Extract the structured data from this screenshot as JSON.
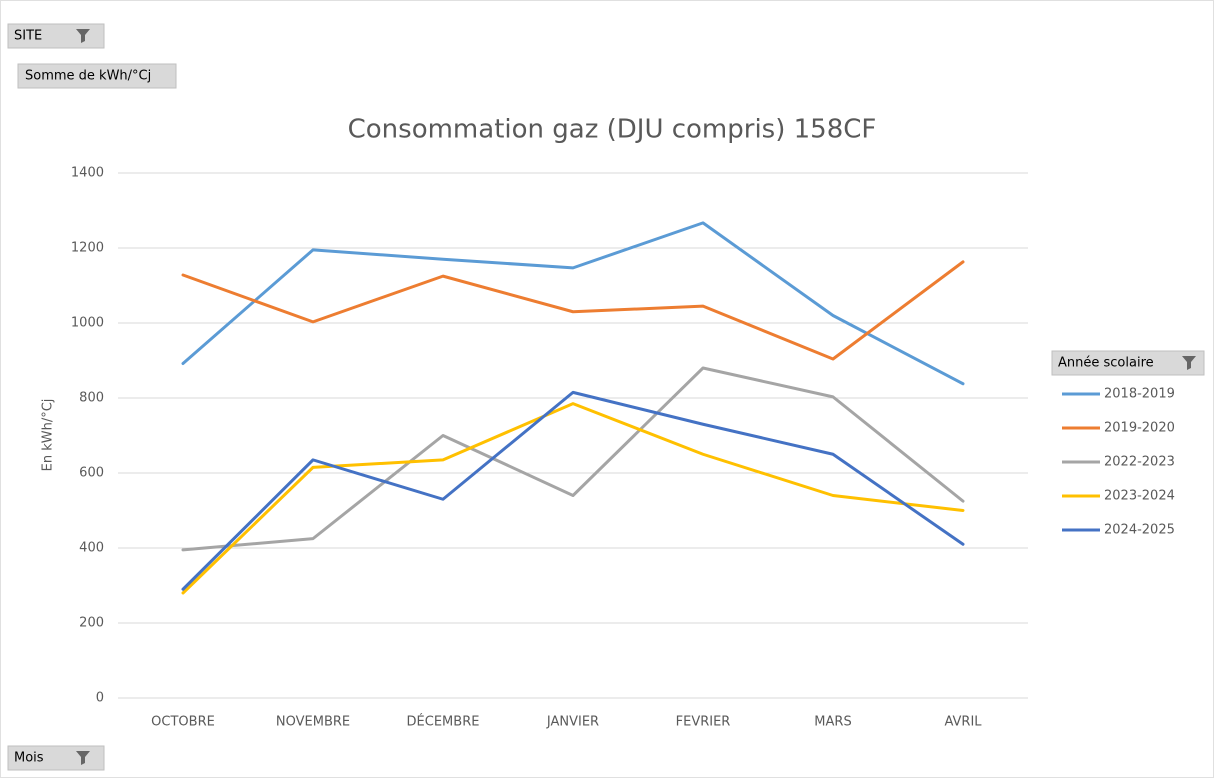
{
  "pivot": {
    "report_filter": "SITE",
    "values_field": "Somme de kWh/°Cj",
    "legend_field": "Année scolaire",
    "axis_field": "Mois"
  },
  "chart_data": {
    "type": "line",
    "title": "Consommation gaz (DJU compris) 158CF",
    "y_label": "En kWh/°Cj",
    "categories": [
      "OCTOBRE",
      "NOVEMBRE",
      "DÉCEMBRE",
      "JANVIER",
      "FEVRIER",
      "MARS",
      "AVRIL"
    ],
    "series": [
      {
        "name": "2018-2019",
        "color": "#5b9bd5",
        "values": [
          892,
          1195,
          1170,
          1147,
          1267,
          1020,
          838
        ]
      },
      {
        "name": "2019-2020",
        "color": "#ed7d31",
        "values": [
          1128,
          1003,
          1125,
          1030,
          1045,
          904,
          1163
        ]
      },
      {
        "name": "2022-2023",
        "color": "#a5a5a5",
        "values": [
          395,
          425,
          700,
          540,
          880,
          803,
          525
        ]
      },
      {
        "name": "2023-2024",
        "color": "#ffc000",
        "values": [
          280,
          615,
          635,
          785,
          650,
          540,
          500
        ]
      },
      {
        "name": "2024-2025",
        "color": "#4472c4",
        "values": [
          290,
          635,
          530,
          815,
          730,
          650,
          410
        ]
      }
    ],
    "ylim": [
      0,
      1400
    ],
    "yticks": [
      0,
      200,
      400,
      600,
      800,
      1000,
      1200,
      1400
    ],
    "grid": true,
    "legend": "right"
  }
}
